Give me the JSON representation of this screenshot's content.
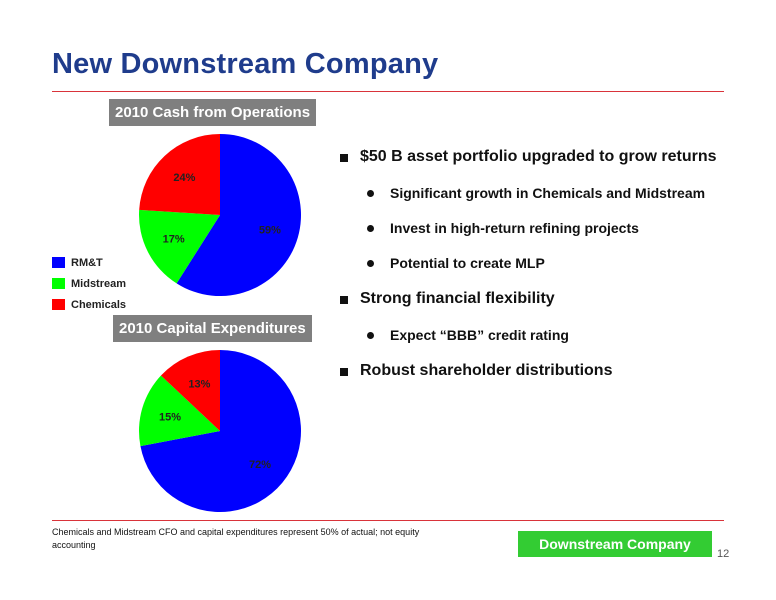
{
  "slide": {
    "title": "New Downstream Company",
    "bullets": [
      {
        "text": "$50 B asset portfolio upgraded to grow returns",
        "sub": [
          "Significant growth in Chemicals and Midstream",
          "Invest in high-return refining projects",
          "Potential to create MLP"
        ]
      },
      {
        "text": "Strong financial flexibility",
        "sub": [
          "Expect “BBB” credit rating"
        ]
      },
      {
        "text": "Robust shareholder distributions",
        "sub": []
      }
    ],
    "footnote": "Chemicals and Midstream CFO and capital expenditures represent 50% of actual; not equity accounting",
    "footer_badge": "Downstream Company",
    "page_number": "12"
  },
  "legend": [
    {
      "label": "RM&T",
      "color": "#0000ff"
    },
    {
      "label": "Midstream",
      "color": "#00ff00"
    },
    {
      "label": "Chemicals",
      "color": "#ff0000"
    }
  ],
  "chart_data": [
    {
      "type": "pie",
      "title": "2010 Cash from Operations",
      "categories": [
        "RM&T",
        "Midstream",
        "Chemicals"
      ],
      "values": [
        59,
        17,
        24
      ],
      "labels": [
        "59%",
        "17%",
        "24%"
      ],
      "colors": [
        "#0000ff",
        "#00ff00",
        "#ff0000"
      ],
      "legend": "left"
    },
    {
      "type": "pie",
      "title": "2010 Capital Expenditures",
      "categories": [
        "RM&T",
        "Midstream",
        "Chemicals"
      ],
      "values": [
        72,
        15,
        13
      ],
      "labels": [
        "72%",
        "15%",
        "13%"
      ],
      "colors": [
        "#0000ff",
        "#00ff00",
        "#ff0000"
      ]
    }
  ]
}
